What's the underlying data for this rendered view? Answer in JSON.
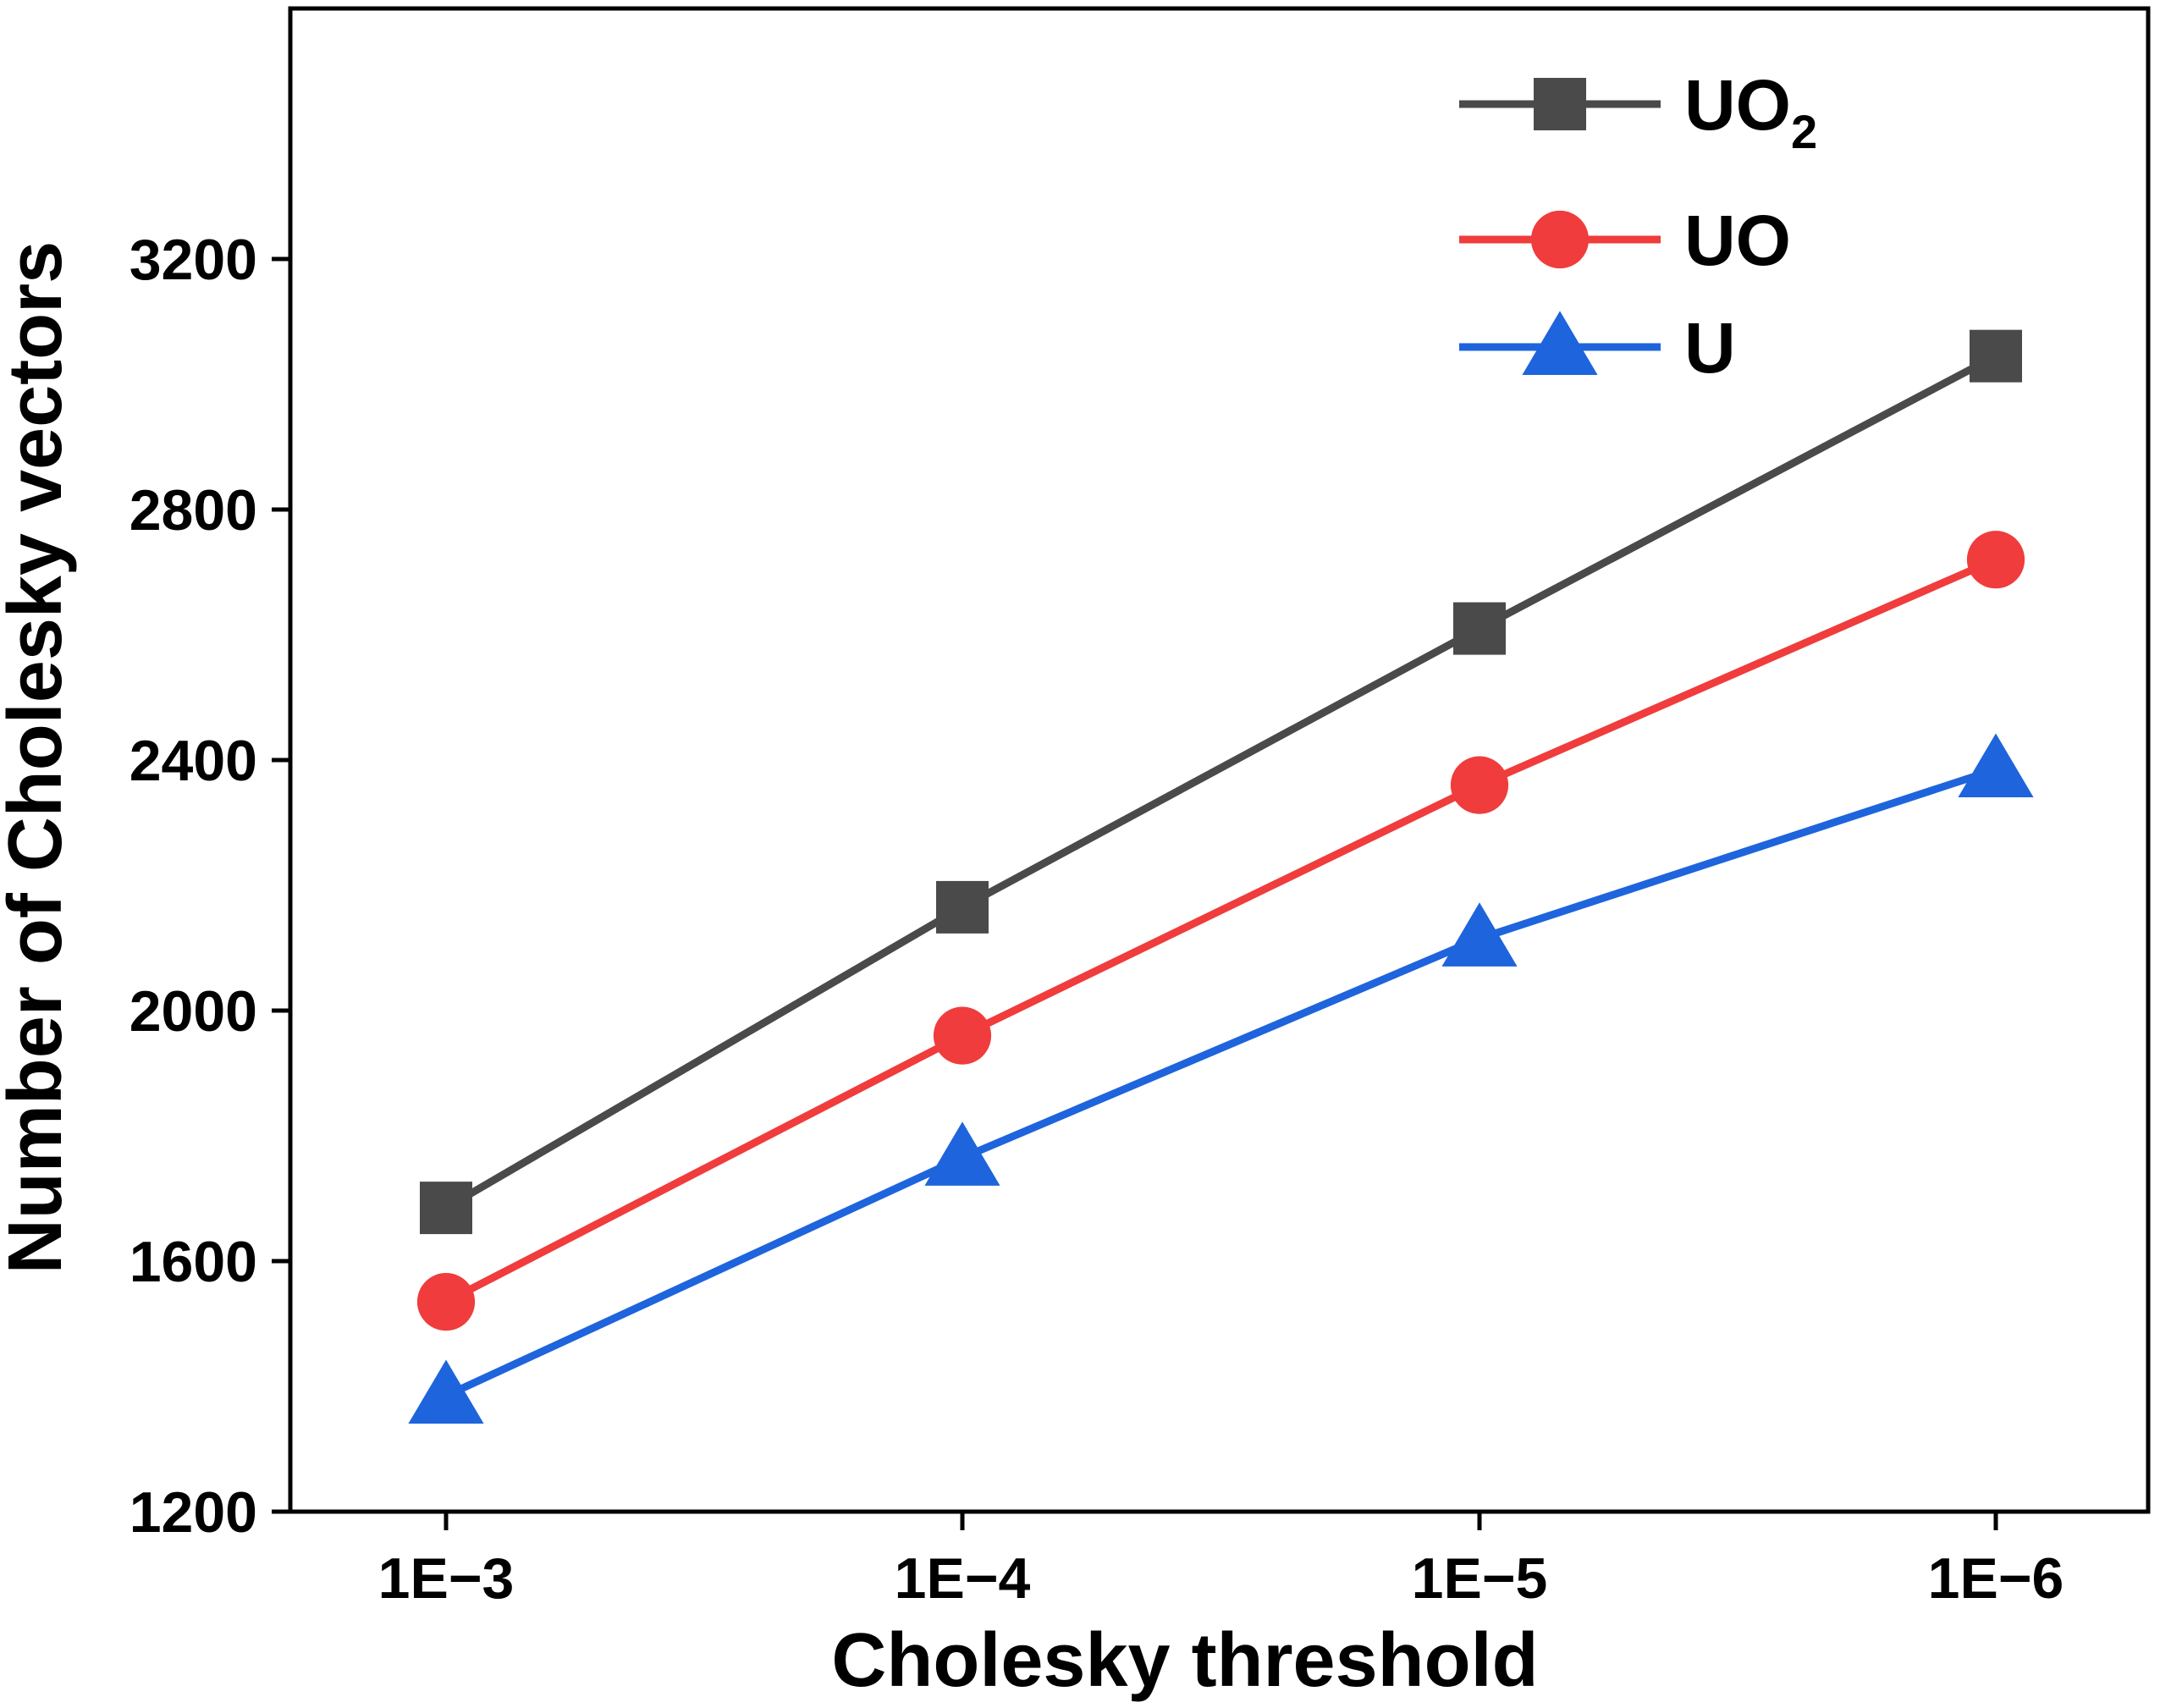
{
  "chart_data": {
    "type": "line",
    "title": "",
    "xlabel": "Cholesky threshold",
    "ylabel": "Number of Cholesky vectors",
    "categories": [
      "1E−3",
      "1E−4",
      "1E−5",
      "1E−6"
    ],
    "ylim": [
      1200,
      3600
    ],
    "yticks": [
      1200,
      1600,
      2000,
      2400,
      2800,
      3200
    ],
    "ytick_labels": [
      "1200",
      "1600",
      "2000",
      "2400",
      "2800",
      "3200"
    ],
    "grid": false,
    "legend_position": "top-right",
    "series": [
      {
        "name": "UO2",
        "label_main": "UO",
        "label_sub": "2",
        "color": "#4a4a4a",
        "marker": "square",
        "values": [
          1685,
          2165,
          2610,
          3045
        ]
      },
      {
        "name": "UO",
        "label_main": "UO",
        "label_sub": "",
        "color": "#f03c3c",
        "marker": "circle",
        "values": [
          1535,
          1960,
          2360,
          2720
        ]
      },
      {
        "name": "U",
        "label_main": "U",
        "label_sub": "",
        "color": "#1e64dc",
        "marker": "triangle",
        "values": [
          1385,
          1765,
          2115,
          2385
        ]
      }
    ]
  }
}
